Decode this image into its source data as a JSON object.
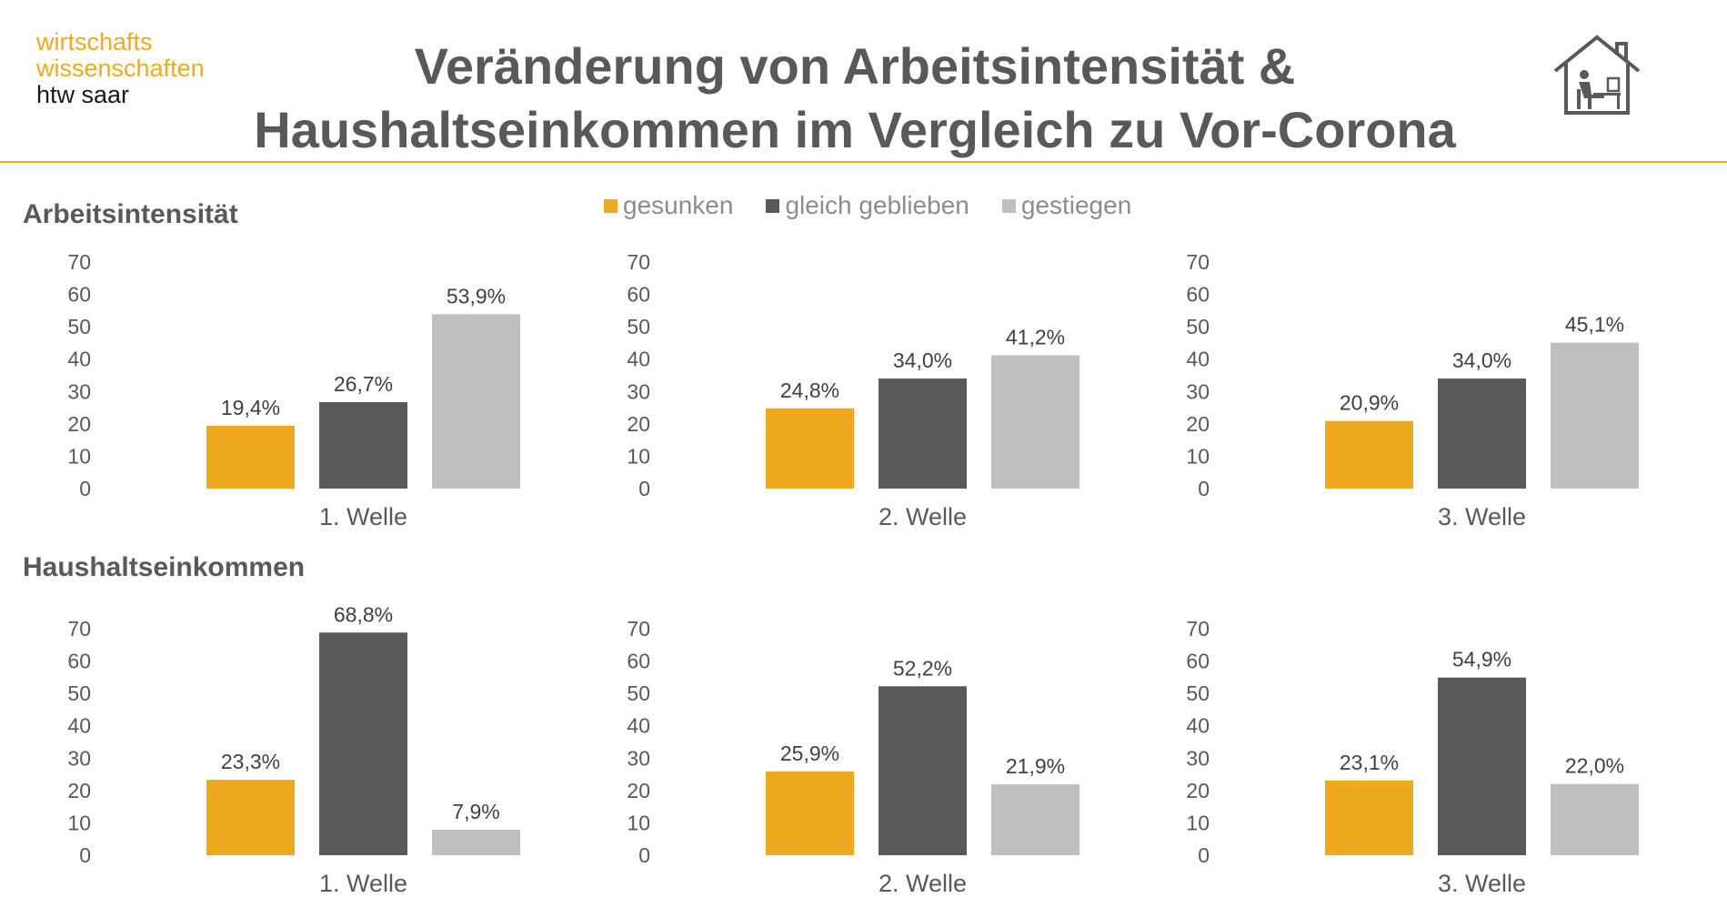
{
  "logo": {
    "line1": "wirtschafts",
    "line2": "wissenschaften",
    "line3": "htw saar"
  },
  "title": {
    "line1": "Veränderung von Arbeitsintensität &",
    "line2": "Haushaltseinkommen im Vergleich zu Vor-Corona"
  },
  "icon": "home-office-icon",
  "colors": {
    "gesunken": "#EEA920",
    "gleich": "#595959",
    "gestiegen": "#BFBFBF",
    "accent": "#EEA920"
  },
  "legend": [
    {
      "label": "gesunken",
      "color": "#EEA920"
    },
    {
      "label": "gleich geblieben",
      "color": "#595959"
    },
    {
      "label": "gestiegen",
      "color": "#BFBFBF"
    }
  ],
  "sections": {
    "arbeit": "Arbeitsintensität",
    "einkommen": "Haushaltseinkommen"
  },
  "chart_data": [
    {
      "type": "bar",
      "section": "Arbeitsintensität",
      "category": "1. Welle",
      "series": [
        "gesunken",
        "gleich geblieben",
        "gestiegen"
      ],
      "values": [
        19.4,
        26.7,
        53.9
      ],
      "labels": [
        "19,4%",
        "26,7%",
        "53,9%"
      ],
      "ylim": [
        0,
        70
      ],
      "yticks": [
        0,
        10,
        20,
        30,
        40,
        50,
        60,
        70
      ]
    },
    {
      "type": "bar",
      "section": "Arbeitsintensität",
      "category": "2. Welle",
      "series": [
        "gesunken",
        "gleich geblieben",
        "gestiegen"
      ],
      "values": [
        24.8,
        34.0,
        41.2
      ],
      "labels": [
        "24,8%",
        "34,0%",
        "41,2%"
      ],
      "ylim": [
        0,
        70
      ],
      "yticks": [
        0,
        10,
        20,
        30,
        40,
        50,
        60,
        70
      ]
    },
    {
      "type": "bar",
      "section": "Arbeitsintensität",
      "category": "3. Welle",
      "series": [
        "gesunken",
        "gleich geblieben",
        "gestiegen"
      ],
      "values": [
        20.9,
        34.0,
        45.1
      ],
      "labels": [
        "20,9%",
        "34,0%",
        "45,1%"
      ],
      "ylim": [
        0,
        70
      ],
      "yticks": [
        0,
        10,
        20,
        30,
        40,
        50,
        60,
        70
      ]
    },
    {
      "type": "bar",
      "section": "Haushaltseinkommen",
      "category": "1. Welle",
      "series": [
        "gesunken",
        "gleich geblieben",
        "gestiegen"
      ],
      "values": [
        23.3,
        68.8,
        7.9
      ],
      "labels": [
        "23,3%",
        "68,8%",
        "7,9%"
      ],
      "ylim": [
        0,
        70
      ],
      "yticks": [
        0,
        10,
        20,
        30,
        40,
        50,
        60,
        70
      ]
    },
    {
      "type": "bar",
      "section": "Haushaltseinkommen",
      "category": "2. Welle",
      "series": [
        "gesunken",
        "gleich geblieben",
        "gestiegen"
      ],
      "values": [
        25.9,
        52.2,
        21.9
      ],
      "labels": [
        "25,9%",
        "52,2%",
        "21,9%"
      ],
      "ylim": [
        0,
        70
      ],
      "yticks": [
        0,
        10,
        20,
        30,
        40,
        50,
        60,
        70
      ]
    },
    {
      "type": "bar",
      "section": "Haushaltseinkommen",
      "category": "3. Welle",
      "series": [
        "gesunken",
        "gleich geblieben",
        "gestiegen"
      ],
      "values": [
        23.1,
        54.9,
        22.0
      ],
      "labels": [
        "23,1%",
        "54,9%",
        "22,0%"
      ],
      "ylim": [
        0,
        70
      ],
      "yticks": [
        0,
        10,
        20,
        30,
        40,
        50,
        60,
        70
      ]
    }
  ]
}
